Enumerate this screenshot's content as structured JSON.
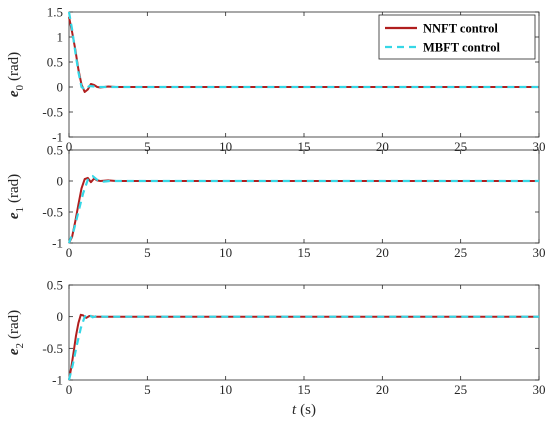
{
  "chart_data": [
    {
      "type": "line",
      "ylabel_var": "e",
      "ylabel_sub": "0",
      "ylabel_unit": "(rad)",
      "xlim": [
        0,
        30
      ],
      "ylim": [
        -1,
        1.5
      ],
      "xticks": [
        "0",
        "5",
        "10",
        "15",
        "20",
        "25",
        "30"
      ],
      "yticks": [
        "-1",
        "-0.5",
        "0",
        "0.5",
        "1",
        "1.5"
      ],
      "legend_placement": "top-right",
      "series": [
        {
          "name": "NNFT control",
          "color": "#b01e1e",
          "dash": "solid",
          "x": [
            0,
            0.2,
            0.4,
            0.6,
            0.8,
            1.0,
            1.2,
            1.4,
            1.6,
            1.8,
            2.0,
            2.5,
            3.0,
            30
          ],
          "y": [
            1.4,
            1.1,
            0.75,
            0.35,
            0.05,
            -0.1,
            -0.05,
            0.06,
            0.04,
            0.0,
            -0.01,
            0.01,
            0.0,
            0.0
          ]
        },
        {
          "name": "MBFT control",
          "color": "#35d7e6",
          "dash": "dashed",
          "x": [
            0,
            0.2,
            0.4,
            0.6,
            0.8,
            1.0,
            1.3,
            1.6,
            2.0,
            2.5,
            30
          ],
          "y": [
            1.5,
            1.15,
            0.7,
            0.3,
            0.0,
            -0.05,
            0.02,
            0.01,
            0.0,
            0.0,
            0.0
          ]
        }
      ]
    },
    {
      "type": "line",
      "ylabel_var": "e",
      "ylabel_sub": "1",
      "ylabel_unit": "(rad)",
      "xlim": [
        0,
        30
      ],
      "ylim": [
        -1,
        0.5
      ],
      "xticks": [
        "0",
        "5",
        "10",
        "15",
        "20",
        "25",
        "30"
      ],
      "yticks": [
        "-1",
        "-0.5",
        "0",
        "0.5"
      ],
      "series": [
        {
          "name": "NNFT control",
          "color": "#b01e1e",
          "dash": "solid",
          "x": [
            0,
            0.2,
            0.4,
            0.6,
            0.8,
            1.0,
            1.2,
            1.4,
            1.6,
            1.8,
            2.0,
            2.5,
            3.0,
            30
          ],
          "y": [
            -1.0,
            -0.9,
            -0.65,
            -0.38,
            -0.12,
            0.03,
            0.05,
            -0.02,
            0.04,
            0.01,
            0.0,
            0.01,
            0.0,
            0.0
          ]
        },
        {
          "name": "MBFT control",
          "color": "#35d7e6",
          "dash": "dashed",
          "x": [
            0,
            0.3,
            0.6,
            0.9,
            1.2,
            1.5,
            1.8,
            2.2,
            2.6,
            30
          ],
          "y": [
            -1.0,
            -0.8,
            -0.5,
            -0.2,
            0.02,
            0.08,
            0.02,
            -0.01,
            0.0,
            0.0
          ]
        }
      ]
    },
    {
      "type": "line",
      "ylabel_var": "e",
      "ylabel_sub": "2",
      "ylabel_unit": "(rad)",
      "xlabel_var": "t",
      "xlabel_unit": "(s)",
      "xlim": [
        0,
        30
      ],
      "ylim": [
        -1,
        0.5
      ],
      "xticks": [
        "0",
        "5",
        "10",
        "15",
        "20",
        "25",
        "30"
      ],
      "yticks": [
        "-1",
        "-0.5",
        "0",
        "0.5"
      ],
      "series": [
        {
          "name": "NNFT control",
          "color": "#b01e1e",
          "dash": "solid",
          "x": [
            0,
            0.15,
            0.3,
            0.45,
            0.6,
            0.75,
            0.9,
            1.1,
            1.3,
            1.6,
            2.0,
            30
          ],
          "y": [
            -1.0,
            -0.8,
            -0.55,
            -0.3,
            -0.1,
            0.03,
            0.02,
            -0.02,
            0.01,
            0.0,
            0.0,
            0.0
          ]
        },
        {
          "name": "MBFT control",
          "color": "#35d7e6",
          "dash": "dashed",
          "x": [
            0,
            0.25,
            0.5,
            0.75,
            1.0,
            1.25,
            1.5,
            1.8,
            2.2,
            30
          ],
          "y": [
            -1.0,
            -0.75,
            -0.45,
            -0.18,
            0.0,
            0.04,
            -0.01,
            0.01,
            0.0,
            0.0
          ]
        }
      ]
    }
  ]
}
